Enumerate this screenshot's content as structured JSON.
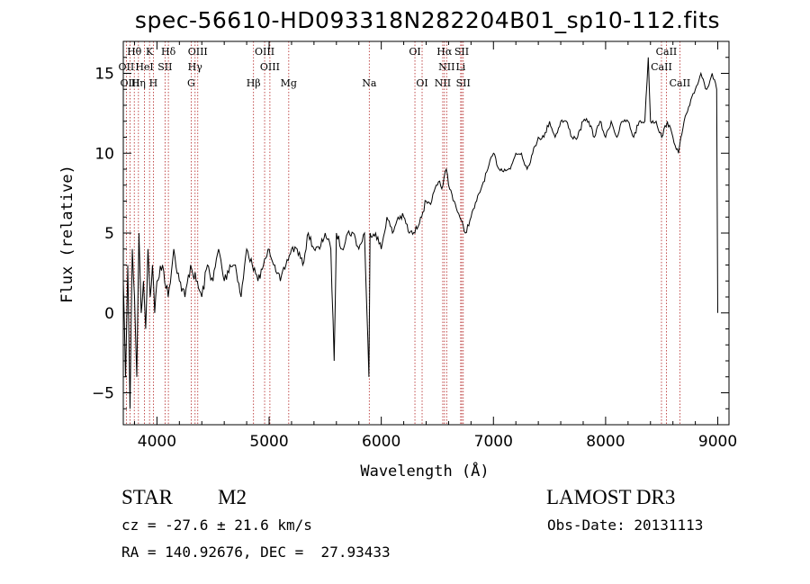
{
  "chart_data": {
    "type": "line",
    "title": "spec-56610-HD093318N282204B01_sp10-112.fits",
    "xlabel": "Wavelength (Å)",
    "ylabel": "Flux (relative)",
    "xlim": [
      3700,
      9100
    ],
    "ylim": [
      -7,
      17
    ],
    "x_ticks": [
      4000,
      5000,
      6000,
      7000,
      8000,
      9000
    ],
    "y_ticks": [
      -5,
      0,
      5,
      10,
      15
    ],
    "grid": false,
    "series": [
      {
        "x": [
          3700,
          3720,
          3740,
          3760,
          3780,
          3800,
          3820,
          3840,
          3860,
          3880,
          3900,
          3920,
          3940,
          3960,
          3980,
          4000,
          4050,
          4100,
          4150,
          4200,
          4250,
          4300,
          4350,
          4400,
          4450,
          4500,
          4550,
          4600,
          4650,
          4700,
          4750,
          4800,
          4850,
          4900,
          4950,
          5000,
          5050,
          5100,
          5150,
          5200,
          5250,
          5300,
          5350,
          5400,
          5450,
          5500,
          5550,
          5580,
          5600,
          5650,
          5700,
          5750,
          5800,
          5850,
          5890,
          5900,
          5950,
          6000,
          6050,
          6100,
          6150,
          6200,
          6250,
          6300,
          6350,
          6400,
          6450,
          6500,
          6550,
          6580,
          6600,
          6650,
          6700,
          6750,
          6800,
          6850,
          6900,
          6950,
          7000,
          7050,
          7100,
          7150,
          7200,
          7250,
          7300,
          7350,
          7400,
          7450,
          7500,
          7550,
          7600,
          7650,
          7700,
          7750,
          7800,
          7850,
          7900,
          7950,
          8000,
          8050,
          8100,
          8150,
          8200,
          8250,
          8300,
          8350,
          8380,
          8400,
          8450,
          8500,
          8550,
          8600,
          8650,
          8700,
          8750,
          8800,
          8850,
          8900,
          8950,
          8990,
          9000
        ],
        "y": [
          2,
          -4,
          3,
          -6,
          4,
          1,
          -4,
          5,
          0,
          2,
          -1,
          4,
          1,
          3,
          0,
          2,
          3,
          1,
          4,
          2,
          1,
          3,
          2,
          1,
          3,
          2,
          4,
          2,
          3,
          3,
          1,
          4,
          3,
          2,
          3,
          4,
          3,
          2,
          3,
          4,
          4,
          3,
          5,
          4,
          4,
          5,
          4,
          -3,
          5,
          4,
          5,
          5,
          4,
          5,
          -4,
          5,
          5,
          4,
          6,
          5,
          6,
          6,
          5,
          5,
          6,
          7,
          7,
          8,
          8,
          9,
          8,
          7,
          6,
          5,
          6,
          7,
          8,
          9,
          10,
          9,
          9,
          9,
          10,
          10,
          9,
          10,
          11,
          11,
          12,
          11,
          12,
          12,
          11,
          11,
          12,
          12,
          11,
          12,
          11,
          12,
          11,
          12,
          12,
          11,
          12,
          12,
          16,
          12,
          12,
          11,
          12,
          11,
          10,
          12,
          13,
          14,
          15,
          14,
          15,
          14,
          0
        ]
      }
    ],
    "lines": [
      {
        "name": "Hθ",
        "w": 3798,
        "row": 0
      },
      {
        "name": "K",
        "w": 3934,
        "row": 0
      },
      {
        "name": "Hδ",
        "w": 4102,
        "row": 0
      },
      {
        "name": "OIII",
        "w": 4364,
        "row": 0
      },
      {
        "name": "OIII",
        "w": 4960,
        "row": 0
      },
      {
        "name": "OI",
        "w": 6300,
        "row": 0
      },
      {
        "name": "Hα",
        "w": 6563,
        "row": 0
      },
      {
        "name": "SII",
        "w": 6717,
        "row": 0
      },
      {
        "name": "CaII",
        "w": 8542,
        "row": 0
      },
      {
        "name": "OII",
        "w": 3727,
        "row": 1
      },
      {
        "name": "HeI",
        "w": 3889,
        "row": 1
      },
      {
        "name": "SII",
        "w": 4072,
        "row": 1
      },
      {
        "name": "Hγ",
        "w": 4340,
        "row": 1
      },
      {
        "name": "OIII",
        "w": 5007,
        "row": 1
      },
      {
        "name": "NII",
        "w": 6583,
        "row": 1
      },
      {
        "name": "Li",
        "w": 6708,
        "row": 1
      },
      {
        "name": "CaII",
        "w": 8498,
        "row": 1
      },
      {
        "name": "OIII",
        "w": 3760,
        "row": 2
      },
      {
        "name": "Hη",
        "w": 3835,
        "row": 2
      },
      {
        "name": "H",
        "w": 3968,
        "row": 2
      },
      {
        "name": "G",
        "w": 4305,
        "row": 2
      },
      {
        "name": "Hβ",
        "w": 4861,
        "row": 2
      },
      {
        "name": "Mg",
        "w": 5175,
        "row": 2
      },
      {
        "name": "Na",
        "w": 5893,
        "row": 2
      },
      {
        "name": "OI",
        "w": 6364,
        "row": 2
      },
      {
        "name": "NII",
        "w": 6548,
        "row": 2
      },
      {
        "name": "SII",
        "w": 6731,
        "row": 2
      },
      {
        "name": "CaII",
        "w": 8662,
        "row": 2
      }
    ]
  },
  "info": {
    "class": "STAR",
    "subclass": "M2",
    "survey": "LAMOST DR3",
    "cz": "cz = -27.6 ± 21.6 km/s",
    "obsdate": "Obs-Date: 20131113",
    "radec": "RA = 140.92676, DEC =  27.93433"
  }
}
